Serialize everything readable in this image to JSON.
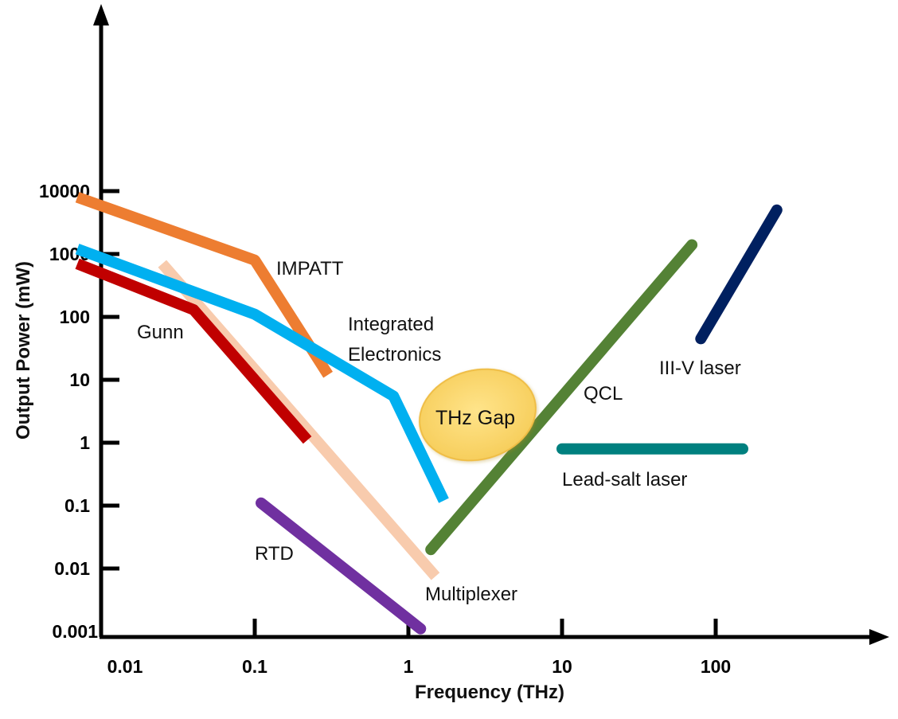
{
  "chart_data": {
    "type": "line",
    "title": "",
    "xlabel": "Frequency (THz)",
    "ylabel": "Output Power (mW)",
    "x_scale": "log",
    "y_scale": "log",
    "xlim": [
      0.007,
      600
    ],
    "ylim": [
      0.001,
      10000
    ],
    "x_ticks": [
      {
        "value": 0.01,
        "label": "0.01"
      },
      {
        "value": 0.1,
        "label": "0.1"
      },
      {
        "value": 1,
        "label": "1"
      },
      {
        "value": 10,
        "label": "10"
      },
      {
        "value": 100,
        "label": "100"
      }
    ],
    "y_ticks": [
      {
        "value": 0.001,
        "label": "0.001"
      },
      {
        "value": 0.01,
        "label": "0.01"
      },
      {
        "value": 0.1,
        "label": "0.1"
      },
      {
        "value": 1,
        "label": "1"
      },
      {
        "value": 10,
        "label": "10"
      },
      {
        "value": 100,
        "label": "100"
      },
      {
        "value": 1000,
        "label": "1000"
      },
      {
        "value": 10000,
        "label": "10000"
      }
    ],
    "grid": false,
    "legend": "none",
    "series": [
      {
        "name": "IMPATT",
        "color": "#ed7d31",
        "x": [
          0.007,
          0.1,
          0.3
        ],
        "y": [
          8000,
          800,
          12
        ]
      },
      {
        "name": "Integrated Electronics",
        "color": "#00b0f0",
        "x": [
          0.007,
          0.1,
          0.8,
          1.7
        ],
        "y": [
          1200,
          110,
          5.5,
          0.12
        ]
      },
      {
        "name": "Gunn",
        "color": "#c00000",
        "x": [
          0.007,
          0.04,
          0.22
        ],
        "y": [
          700,
          130,
          1.1
        ]
      },
      {
        "name": "Multiplexer",
        "color": "#f8cbad",
        "x": [
          0.025,
          1.5
        ],
        "y": [
          700,
          0.0075
        ]
      },
      {
        "name": "RTD",
        "color": "#7030a0",
        "x": [
          0.11,
          1.2
        ],
        "y": [
          0.11,
          0.0011
        ]
      },
      {
        "name": "QCL",
        "color": "#548235",
        "x": [
          1.4,
          70
        ],
        "y": [
          0.02,
          1400
        ]
      },
      {
        "name": "Lead-salt laser",
        "color": "#00807f",
        "x": [
          10,
          150
        ],
        "y": [
          0.8,
          0.8
        ]
      },
      {
        "name": "III-V laser",
        "color": "#002060",
        "x": [
          80,
          250
        ],
        "y": [
          45,
          5000
        ]
      }
    ],
    "annotations": [
      {
        "text": "THz Gap",
        "shape": "ellipse",
        "fill": "#ffd966",
        "stroke": "#f2c04a"
      }
    ]
  }
}
